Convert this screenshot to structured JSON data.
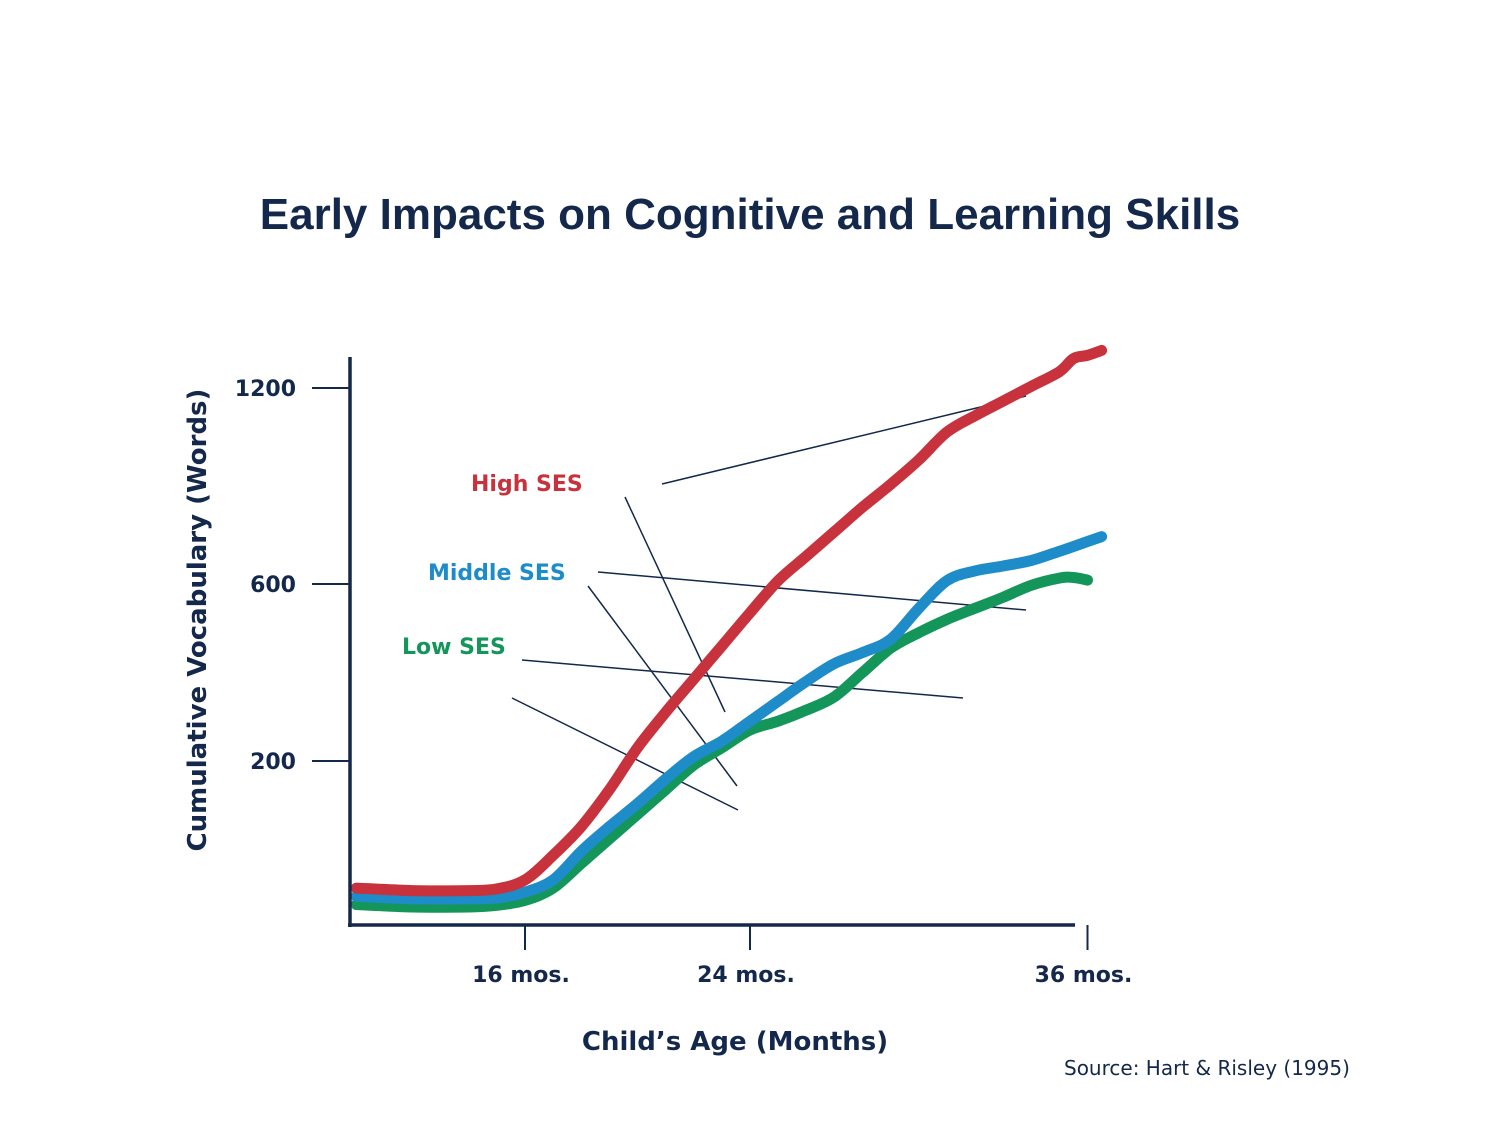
{
  "slide": {
    "title": "Early Impacts on Cognitive and Learning Skills",
    "source": "Source: Hart & Risley (1995)"
  },
  "chart_data": {
    "type": "line",
    "title": "Early Impacts on Cognitive and Learning Skills",
    "xlabel": "Child’s Age (Months)",
    "ylabel": "Cumulative Vocabulary (Words)",
    "xlim": [
      10,
      37
    ],
    "ylim": [
      0,
      1300
    ],
    "x_ticks": [
      {
        "value": 16,
        "label": "16 mos."
      },
      {
        "value": 24,
        "label": "24 mos."
      },
      {
        "value": 36,
        "label": "36 mos."
      }
    ],
    "y_ticks": [
      {
        "value": 200,
        "label": "200"
      },
      {
        "value": 600,
        "label": "600"
      },
      {
        "value": 1200,
        "label": "1200"
      }
    ],
    "grid": false,
    "series": [
      {
        "name": "High SES",
        "color": "#c8323c",
        "x": [
          10,
          12,
          14,
          15,
          16,
          17,
          18,
          19,
          20,
          21,
          22,
          23,
          24,
          25,
          26,
          27,
          28,
          29,
          30,
          31,
          32,
          33,
          34,
          35,
          35.5,
          36,
          36.5
        ],
        "y": [
          45,
          42,
          42,
          44,
          55,
          85,
          120,
          165,
          230,
          310,
          385,
          460,
          535,
          610,
          685,
          760,
          835,
          905,
          980,
          1065,
          1115,
          1160,
          1205,
          1250,
          1290,
          1300,
          1315
        ]
      },
      {
        "name": "Middle SES",
        "color": "#1e8cc8",
        "x": [
          10,
          12,
          14,
          15,
          16,
          17,
          18,
          19,
          20,
          21,
          22,
          23,
          24,
          25,
          26,
          27,
          28,
          29,
          30,
          31,
          32,
          33,
          34,
          35,
          36,
          36.5
        ],
        "y": [
          35,
          32,
          32,
          33,
          40,
          55,
          90,
          120,
          148,
          178,
          210,
          245,
          290,
          335,
          380,
          420,
          445,
          475,
          545,
          610,
          640,
          655,
          672,
          700,
          730,
          745
        ]
      },
      {
        "name": "Low SES",
        "color": "#14965a",
        "x": [
          10,
          12,
          14,
          15,
          16,
          17,
          18,
          19,
          20,
          21,
          22,
          23,
          24,
          25,
          26,
          27,
          28,
          29,
          30,
          31,
          32,
          33,
          34,
          35,
          35.5,
          36
        ],
        "y": [
          25,
          22,
          22,
          24,
          30,
          45,
          75,
          105,
          135,
          165,
          195,
          230,
          270,
          290,
          315,
          345,
          400,
          455,
          490,
          520,
          545,
          570,
          597,
          618,
          620,
          612
        ]
      }
    ]
  }
}
